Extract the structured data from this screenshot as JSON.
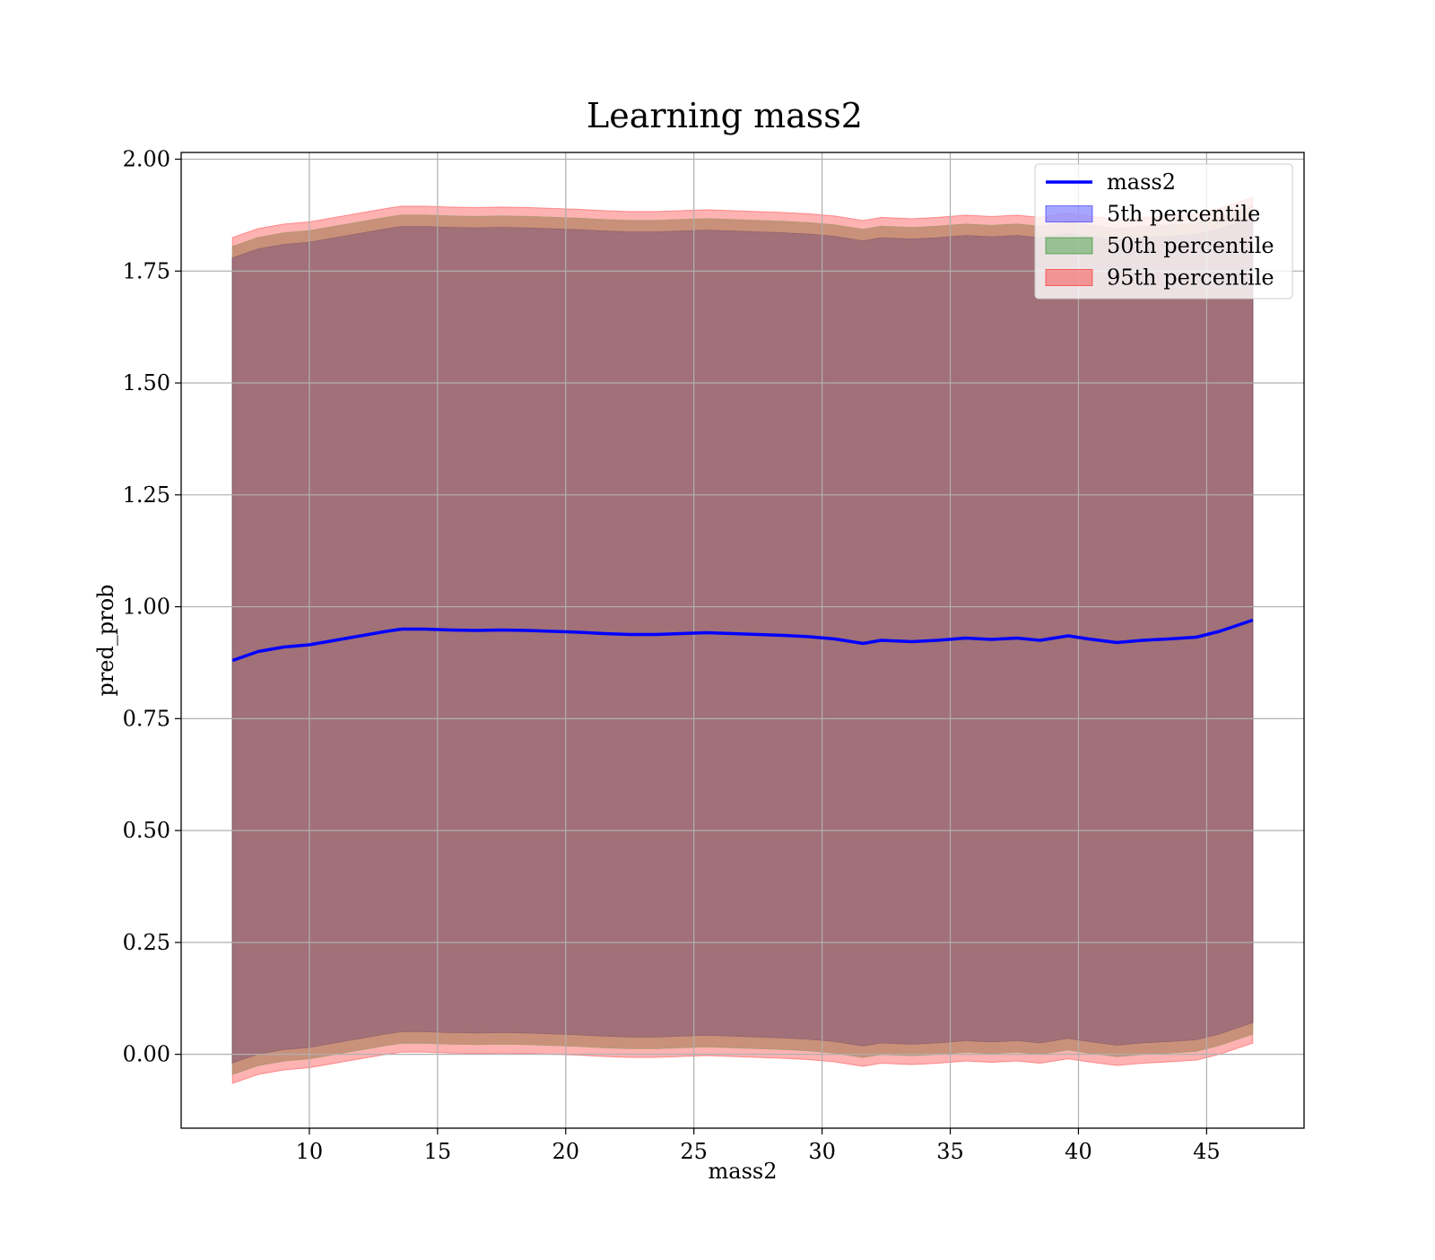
{
  "chart_data": {
    "type": "line",
    "title": "Learning mass2",
    "xlabel": "mass2",
    "ylabel": "pred_prob",
    "xlim": [
      5.0,
      48.8
    ],
    "ylim": [
      -0.165,
      2.015
    ],
    "xticks": [
      "10",
      "15",
      "20",
      "25",
      "30",
      "35",
      "40",
      "45"
    ],
    "yticks": [
      "0.00",
      "0.25",
      "0.50",
      "0.75",
      "1.00",
      "1.25",
      "1.50",
      "1.75",
      "2.00"
    ],
    "grid": true,
    "legend_position": "upper right",
    "x": [
      7.0,
      8.0,
      9.0,
      10.0,
      11.0,
      12.0,
      13.0,
      13.6,
      14.5,
      15.5,
      16.5,
      17.5,
      18.5,
      19.5,
      20.5,
      21.5,
      22.5,
      23.5,
      24.5,
      25.5,
      26.5,
      27.5,
      28.5,
      29.5,
      30.5,
      31.6,
      32.3,
      33.5,
      34.5,
      35.6,
      36.6,
      37.6,
      38.5,
      39.6,
      40.4,
      41.5,
      42.5,
      43.5,
      44.6,
      45.5,
      46.8
    ],
    "series": [
      {
        "name": "mass2",
        "style": "line",
        "values": [
          0.88,
          0.9,
          0.91,
          0.915,
          0.925,
          0.935,
          0.945,
          0.95,
          0.95,
          0.948,
          0.947,
          0.948,
          0.947,
          0.945,
          0.943,
          0.94,
          0.938,
          0.938,
          0.94,
          0.942,
          0.94,
          0.938,
          0.936,
          0.933,
          0.928,
          0.918,
          0.925,
          0.922,
          0.925,
          0.93,
          0.927,
          0.93,
          0.925,
          0.935,
          0.928,
          0.92,
          0.925,
          0.928,
          0.932,
          0.945,
          0.97
        ]
      },
      {
        "name": "5th percentile",
        "style": "band",
        "lower": [
          -0.02,
          0.0,
          0.01,
          0.015,
          0.025,
          0.035,
          0.045,
          0.05,
          0.05,
          0.048,
          0.047,
          0.048,
          0.047,
          0.045,
          0.043,
          0.04,
          0.038,
          0.038,
          0.04,
          0.042,
          0.04,
          0.038,
          0.036,
          0.033,
          0.028,
          0.018,
          0.025,
          0.022,
          0.025,
          0.03,
          0.027,
          0.03,
          0.025,
          0.035,
          0.028,
          0.02,
          0.025,
          0.028,
          0.032,
          0.045,
          0.07
        ],
        "upper": [
          1.78,
          1.8,
          1.81,
          1.815,
          1.825,
          1.835,
          1.845,
          1.85,
          1.85,
          1.848,
          1.847,
          1.848,
          1.847,
          1.845,
          1.843,
          1.84,
          1.838,
          1.838,
          1.84,
          1.842,
          1.84,
          1.838,
          1.836,
          1.833,
          1.828,
          1.818,
          1.825,
          1.822,
          1.825,
          1.83,
          1.827,
          1.83,
          1.825,
          1.835,
          1.828,
          1.82,
          1.825,
          1.828,
          1.832,
          1.845,
          1.87
        ]
      },
      {
        "name": "50th percentile",
        "style": "band",
        "lower": [
          -0.045,
          -0.025,
          -0.015,
          -0.01,
          0.0,
          0.01,
          0.02,
          0.025,
          0.025,
          0.023,
          0.022,
          0.023,
          0.022,
          0.02,
          0.018,
          0.015,
          0.013,
          0.013,
          0.015,
          0.017,
          0.015,
          0.013,
          0.011,
          0.008,
          0.003,
          -0.007,
          0.0,
          -0.003,
          0.0,
          0.005,
          0.002,
          0.005,
          0.0,
          0.01,
          0.003,
          -0.005,
          0.0,
          0.003,
          0.007,
          0.02,
          0.045
        ],
        "upper": [
          1.805,
          1.825,
          1.835,
          1.84,
          1.85,
          1.86,
          1.87,
          1.875,
          1.875,
          1.873,
          1.872,
          1.873,
          1.872,
          1.87,
          1.868,
          1.865,
          1.863,
          1.863,
          1.865,
          1.867,
          1.865,
          1.863,
          1.861,
          1.858,
          1.853,
          1.843,
          1.85,
          1.847,
          1.85,
          1.855,
          1.852,
          1.855,
          1.85,
          1.86,
          1.853,
          1.845,
          1.85,
          1.853,
          1.857,
          1.87,
          1.895
        ]
      },
      {
        "name": "95th percentile",
        "style": "band",
        "lower": [
          -0.065,
          -0.045,
          -0.035,
          -0.03,
          -0.02,
          -0.01,
          0.0,
          0.005,
          0.005,
          0.003,
          0.002,
          0.003,
          0.002,
          0.0,
          -0.002,
          -0.005,
          -0.007,
          -0.007,
          -0.005,
          -0.003,
          -0.005,
          -0.007,
          -0.009,
          -0.012,
          -0.017,
          -0.027,
          -0.02,
          -0.023,
          -0.02,
          -0.015,
          -0.018,
          -0.015,
          -0.02,
          -0.01,
          -0.017,
          -0.025,
          -0.02,
          -0.017,
          -0.013,
          0.0,
          0.025
        ],
        "upper": [
          1.825,
          1.845,
          1.855,
          1.86,
          1.87,
          1.88,
          1.89,
          1.895,
          1.895,
          1.893,
          1.892,
          1.893,
          1.892,
          1.89,
          1.888,
          1.885,
          1.883,
          1.883,
          1.885,
          1.887,
          1.885,
          1.883,
          1.881,
          1.878,
          1.873,
          1.863,
          1.87,
          1.867,
          1.87,
          1.875,
          1.872,
          1.875,
          1.87,
          1.88,
          1.873,
          1.865,
          1.87,
          1.873,
          1.877,
          1.89,
          1.915
        ]
      }
    ],
    "colors": {
      "line": "#0000ff",
      "band_5": "#0000ff",
      "band_50": "#008000",
      "band_95": "#ff0000",
      "overlap": "#a17078"
    }
  }
}
